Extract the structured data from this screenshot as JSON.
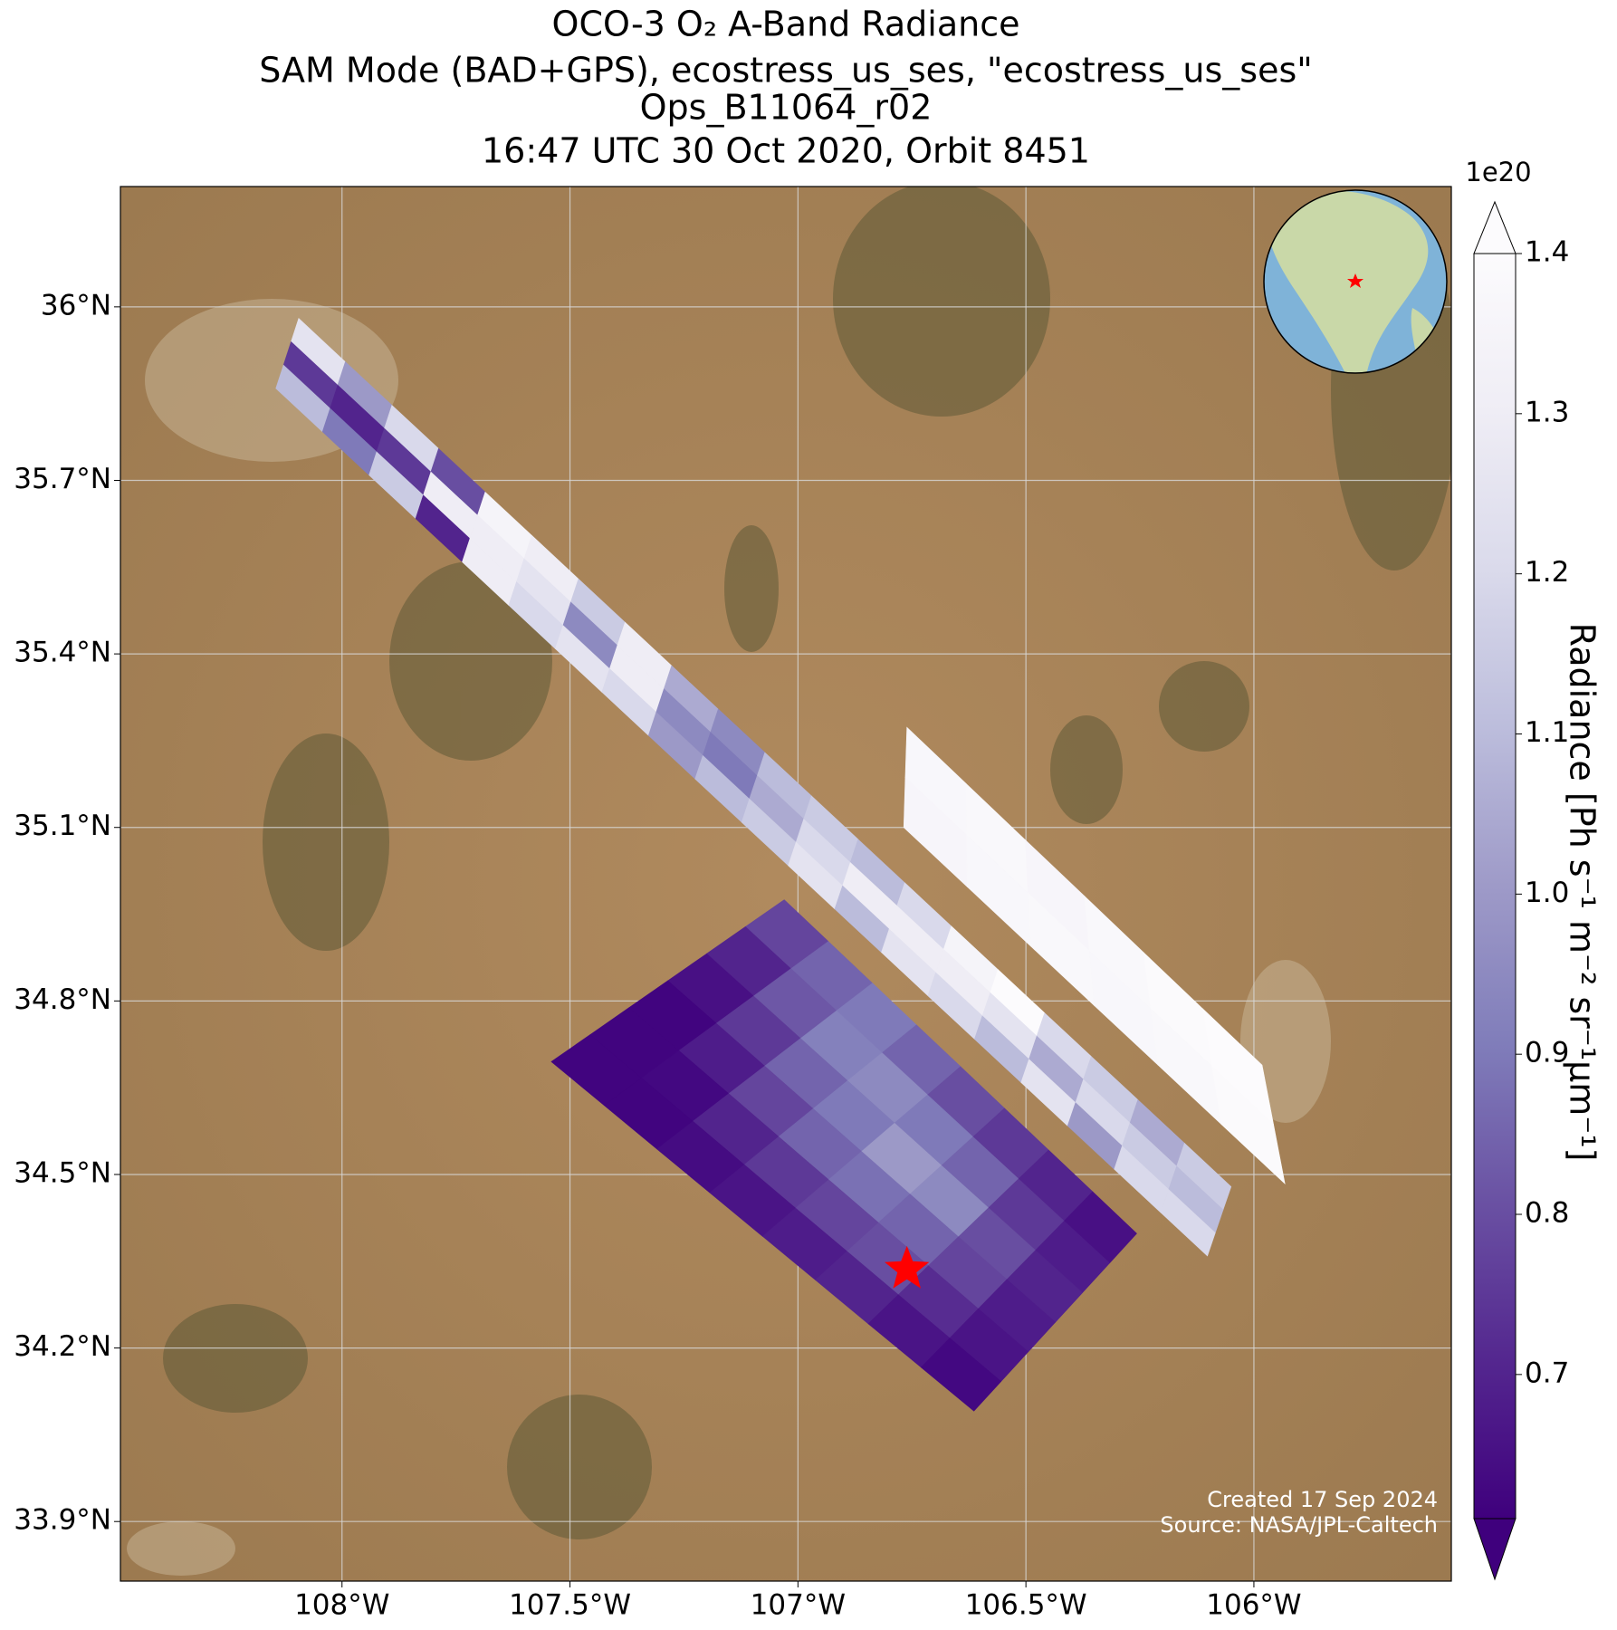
{
  "chart_data": {
    "type": "map",
    "title": [
      "OCO-3 O₂ A-Band Radiance",
      "SAM Mode (BAD+GPS), ecostress_us_ses, \"ecostress_us_ses\"",
      "Ops_B11064_r02",
      "16:47 UTC 30 Oct 2020, Orbit 8451"
    ],
    "xlim": [
      -108.486,
      -105.567
    ],
    "ylim": [
      33.797,
      36.208
    ],
    "xticks": [
      {
        "value": -108,
        "label": "108°W"
      },
      {
        "value": -107.5,
        "label": "107.5°W"
      },
      {
        "value": -107,
        "label": "107°W"
      },
      {
        "value": -106.5,
        "label": "106.5°W"
      },
      {
        "value": -106,
        "label": "106°W"
      }
    ],
    "yticks": [
      {
        "value": 33.9,
        "label": "33.9°N"
      },
      {
        "value": 34.2,
        "label": "34.2°N"
      },
      {
        "value": 34.5,
        "label": "34.5°N"
      },
      {
        "value": 34.8,
        "label": "34.8°N"
      },
      {
        "value": 35.1,
        "label": "35.1°N"
      },
      {
        "value": 35.4,
        "label": "35.4°N"
      },
      {
        "value": 35.7,
        "label": "35.7°N"
      },
      {
        "value": 36,
        "label": "36°N"
      }
    ],
    "grid": true,
    "colorbar": {
      "label": "Radiance [Ph s⁻¹ m⁻² sr⁻¹μm⁻¹]",
      "exponent": "1e20",
      "clim": [
        0.61,
        1.4
      ],
      "ticks": [
        0.7,
        0.8,
        0.9,
        {
          "value": 1,
          "label": "1.0"
        },
        1.1,
        1.2,
        1.3,
        1.4
      ],
      "colormap": [
        "#3f007d",
        "#54278f",
        "#6a51a3",
        "#807dba",
        "#9e9ac8",
        "#bcbddc",
        "#dadaeb",
        "#efedf5",
        "#fcfbfd"
      ]
    },
    "swaths": [
      {
        "corners": [
          [
            -108.095,
            35.98
          ],
          [
            -108.145,
            35.859
          ],
          [
            -106.102,
            34.359
          ],
          [
            -106.05,
            34.479
          ]
        ],
        "values": [
          [
            1.25,
            0.75,
            1.1
          ],
          [
            1.0,
            0.7,
            0.9
          ],
          [
            1.2,
            0.75,
            1.15
          ],
          [
            0.8,
            1.3,
            0.7
          ],
          [
            1.35,
            1.3,
            1.3
          ],
          [
            1.3,
            1.25,
            1.2
          ],
          [
            1.15,
            0.95,
            1.25
          ],
          [
            1.3,
            1.3,
            1.2
          ],
          [
            1.05,
            0.95,
            1.0
          ],
          [
            0.95,
            0.9,
            1.1
          ],
          [
            1.1,
            1.05,
            1.15
          ],
          [
            1.15,
            1.2,
            1.25
          ],
          [
            1.1,
            1.3,
            1.1
          ],
          [
            1.2,
            1.3,
            1.25
          ],
          [
            1.35,
            1.3,
            1.2
          ],
          [
            1.4,
            1.25,
            1.1
          ],
          [
            1.2,
            1.05,
            1.25
          ],
          [
            1.15,
            1.2,
            1.0
          ],
          [
            1.05,
            1.15,
            1.2
          ],
          [
            1.15,
            1.1,
            1.2
          ]
        ]
      },
      {
        "corners": [
          [
            -106.761,
            35.273
          ],
          [
            -106.768,
            35.1
          ],
          [
            -105.932,
            34.484
          ],
          [
            -105.982,
            34.689
          ]
        ],
        "values": [
          [
            1.37,
            1.36
          ],
          [
            1.38,
            1.37
          ],
          [
            1.36,
            1.38
          ],
          [
            1.38,
            1.37
          ],
          [
            1.39,
            1.38
          ],
          [
            1.4,
            1.39
          ]
        ]
      },
      {
        "corners": [
          [
            -107.03,
            34.975
          ],
          [
            -107.541,
            34.695
          ],
          [
            -106.614,
            34.091
          ],
          [
            -106.257,
            34.398
          ]
        ],
        "values": [
          [
            0.78,
            0.7,
            0.65,
            0.62,
            0.62,
            0.62
          ],
          [
            0.85,
            0.82,
            0.75,
            0.68,
            0.63,
            0.62
          ],
          [
            0.9,
            0.92,
            0.85,
            0.78,
            0.7,
            0.64
          ],
          [
            0.85,
            0.95,
            0.9,
            0.85,
            0.75,
            0.66
          ],
          [
            0.8,
            0.9,
            1.0,
            0.88,
            0.78,
            0.68
          ],
          [
            0.75,
            0.85,
            0.95,
            0.85,
            0.8,
            0.7
          ],
          [
            0.7,
            0.75,
            0.8,
            0.78,
            0.72,
            0.66
          ],
          [
            0.65,
            0.68,
            0.7,
            0.68,
            0.66,
            0.63
          ]
        ]
      }
    ],
    "marker": {
      "lon": -106.761,
      "lat": 34.336,
      "color": "#ff0000"
    },
    "footer": [
      "Created 17 Sep 2024",
      "Source: NASA/JPL-Caltech"
    ]
  }
}
